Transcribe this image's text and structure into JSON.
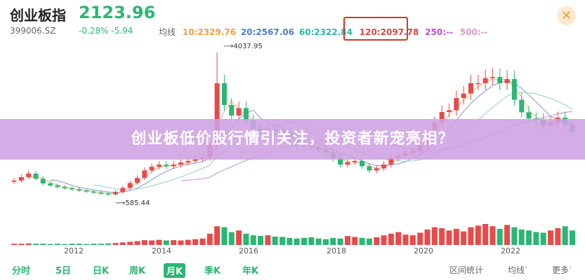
{
  "header": {
    "title": "创业板指",
    "price": "2123.96",
    "code": "399006.SZ",
    "change": "-0.28% -5.94",
    "ma_label": "均线",
    "ma_values": [
      {
        "text": "10:2329.76",
        "color": "#f0a040"
      },
      {
        "text": "20:2567.06",
        "color": "#4a7fd0"
      },
      {
        "text": "60:2322.84",
        "color": "#33b5a8"
      },
      {
        "text": "120:2097.78",
        "color": "#d04848"
      },
      {
        "text": "250:--",
        "color": "#c050d0"
      },
      {
        "text": "500:--",
        "color": "#e296c6"
      }
    ],
    "close_icon": "close-icon"
  },
  "banner": {
    "text": "创业板低价股行情引关注，投资者新宠亮相？"
  },
  "chart_data": {
    "type": "candlestick",
    "period": "monthly",
    "x_start": "2010-07",
    "x_step_months": 2,
    "closes": [
      955,
      1040,
      1124,
      1000,
      888,
      840,
      800,
      770,
      745,
      715,
      690,
      665,
      645,
      625,
      680,
      780,
      900,
      1020,
      1200,
      1290,
      1340,
      1300,
      1340,
      1390,
      1430,
      1480,
      1510,
      1800,
      3300,
      2774,
      2522,
      2700,
      2400,
      2200,
      2150,
      2185,
      2150,
      2100,
      1950,
      1800,
      1780,
      1760,
      1700,
      1630,
      1500,
      1340,
      1400,
      1430,
      1300,
      1200,
      1250,
      1343,
      1500,
      1560,
      1620,
      1680,
      1800,
      2100,
      2350,
      2606,
      2650,
      2942,
      3050,
      3300,
      3300,
      3420,
      3448,
      3300,
      3400,
      2900,
      2600,
      2450,
      2430,
      2280,
      2350,
      2470,
      2300,
      2123.96
    ],
    "volume_relative": [
      4,
      4,
      5,
      4,
      4,
      3,
      4,
      3,
      4,
      4,
      3,
      4,
      4,
      5,
      6,
      8,
      10,
      12,
      15,
      14,
      16,
      14,
      15,
      14,
      16,
      18,
      20,
      35,
      58,
      55,
      40,
      45,
      35,
      30,
      28,
      30,
      26,
      25,
      22,
      20,
      22,
      24,
      20,
      18,
      22,
      20,
      28,
      25,
      22,
      20,
      24,
      30,
      35,
      40,
      32,
      30,
      38,
      48,
      55,
      52,
      45,
      50,
      42,
      55,
      60,
      65,
      58,
      50,
      62,
      55,
      48,
      45,
      40,
      38,
      45,
      52,
      58,
      45
    ],
    "max_label": "4037.95",
    "min_label": "585.44",
    "price_range": [
      585.44,
      4037.95
    ],
    "x_ticks": [
      "2012",
      "2014",
      "2016",
      "2018",
      "2020",
      "2022"
    ],
    "up_color": "#e84a4a",
    "down_color": "#2bb673",
    "ma_colors": {
      "10": "#f0c090",
      "20": "#90a8d8",
      "60": "#9fd6d0",
      "120": "#c8a0d8"
    }
  },
  "bottom_bar": {
    "tabs": [
      {
        "label": "分时"
      },
      {
        "label": "5日"
      },
      {
        "label": "日K"
      },
      {
        "label": "周K"
      },
      {
        "label": "月K",
        "active": true
      },
      {
        "label": "季K"
      },
      {
        "label": "年K"
      }
    ],
    "tools": [
      {
        "label": "区间统计"
      },
      {
        "label": "均线"
      },
      {
        "label": "更多"
      }
    ]
  }
}
